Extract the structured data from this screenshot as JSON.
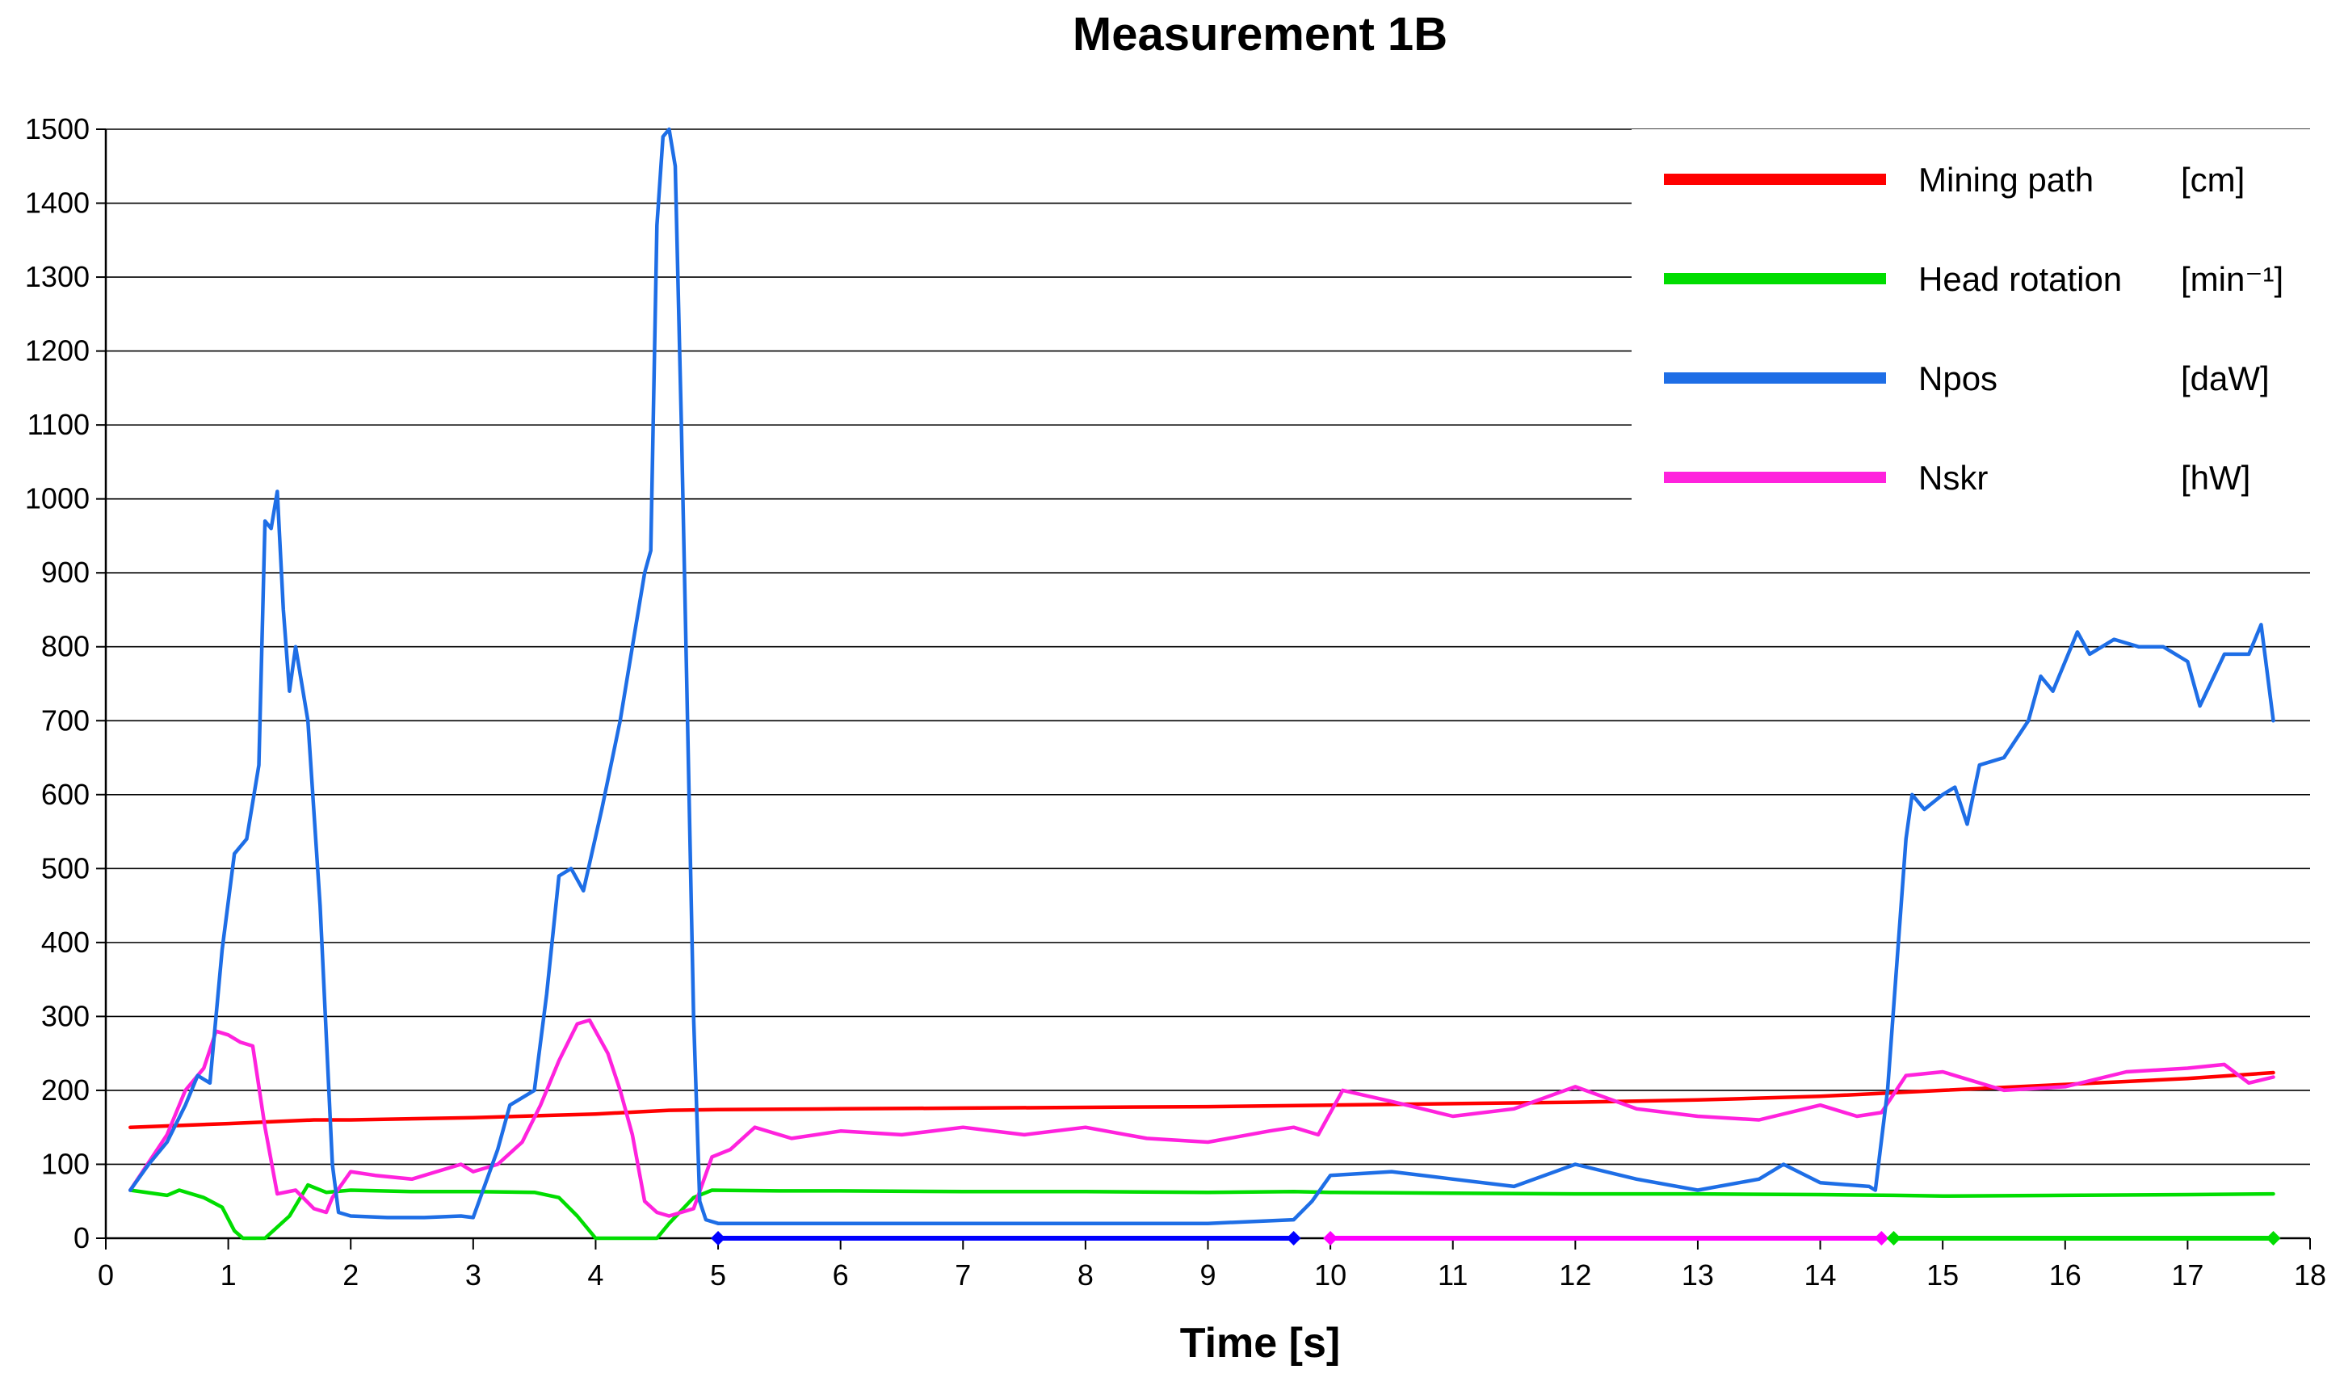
{
  "chart_data": {
    "type": "line",
    "title": "Measurement 1B",
    "xlabel": "Time [s]",
    "ylabel": "",
    "xlim": [
      0,
      18
    ],
    "ylim": [
      0,
      1500
    ],
    "x_ticks": [
      "0",
      "1",
      "2",
      "3",
      "4",
      "5",
      "6",
      "7",
      "8",
      "9",
      "10",
      "11",
      "12",
      "13",
      "14",
      "15",
      "16",
      "17",
      "18"
    ],
    "y_ticks": [
      "0",
      "100",
      "200",
      "300",
      "400",
      "500",
      "600",
      "700",
      "800",
      "900",
      "1000",
      "1100",
      "1200",
      "1300",
      "1400",
      "1500"
    ],
    "grid": "horizontal",
    "legend_position": "top-right",
    "series": [
      {
        "name": "Mining path",
        "unit": "[cm]",
        "color": "#ff0000",
        "points": [
          [
            0.2,
            150
          ],
          [
            1,
            155
          ],
          [
            1.7,
            160
          ],
          [
            2,
            160
          ],
          [
            3,
            163
          ],
          [
            4,
            168
          ],
          [
            4.6,
            173
          ],
          [
            5,
            174
          ],
          [
            6,
            175
          ],
          [
            7,
            176
          ],
          [
            8,
            177
          ],
          [
            9,
            178
          ],
          [
            10,
            180
          ],
          [
            11,
            182
          ],
          [
            12,
            184
          ],
          [
            13,
            187
          ],
          [
            14,
            192
          ],
          [
            15,
            200
          ],
          [
            16,
            208
          ],
          [
            17,
            216
          ],
          [
            17.7,
            224
          ]
        ]
      },
      {
        "name": "Head rotation",
        "unit": "[min⁻¹]",
        "color": "#00dd00",
        "points": [
          [
            0.2,
            65
          ],
          [
            0.5,
            58
          ],
          [
            0.6,
            65
          ],
          [
            0.8,
            55
          ],
          [
            0.95,
            42
          ],
          [
            1.05,
            10
          ],
          [
            1.12,
            0
          ],
          [
            1.3,
            0
          ],
          [
            1.5,
            30
          ],
          [
            1.65,
            72
          ],
          [
            1.8,
            62
          ],
          [
            2,
            65
          ],
          [
            2.5,
            63
          ],
          [
            3,
            63
          ],
          [
            3.5,
            62
          ],
          [
            3.7,
            55
          ],
          [
            3.85,
            30
          ],
          [
            4.0,
            0
          ],
          [
            4.5,
            0
          ],
          [
            4.6,
            20
          ],
          [
            4.8,
            55
          ],
          [
            4.95,
            65
          ],
          [
            5.5,
            64
          ],
          [
            6,
            64
          ],
          [
            7,
            63
          ],
          [
            8,
            63
          ],
          [
            9,
            62
          ],
          [
            9.7,
            63
          ],
          [
            10,
            62
          ],
          [
            11,
            61
          ],
          [
            12,
            60
          ],
          [
            13,
            60
          ],
          [
            14,
            59
          ],
          [
            14.6,
            58
          ],
          [
            15,
            57
          ],
          [
            16,
            58
          ],
          [
            17,
            59
          ],
          [
            17.7,
            60
          ]
        ]
      },
      {
        "name": "Npos",
        "unit": "[daW]",
        "color": "#1e6ee6",
        "points": [
          [
            0.2,
            65
          ],
          [
            0.35,
            100
          ],
          [
            0.5,
            130
          ],
          [
            0.65,
            180
          ],
          [
            0.75,
            220
          ],
          [
            0.85,
            210
          ],
          [
            0.95,
            390
          ],
          [
            1.05,
            520
          ],
          [
            1.15,
            540
          ],
          [
            1.25,
            640
          ],
          [
            1.3,
            970
          ],
          [
            1.35,
            960
          ],
          [
            1.4,
            1010
          ],
          [
            1.45,
            850
          ],
          [
            1.5,
            740
          ],
          [
            1.55,
            800
          ],
          [
            1.65,
            700
          ],
          [
            1.75,
            450
          ],
          [
            1.85,
            100
          ],
          [
            1.9,
            35
          ],
          [
            2.0,
            30
          ],
          [
            2.3,
            28
          ],
          [
            2.6,
            28
          ],
          [
            2.9,
            30
          ],
          [
            3.0,
            28
          ],
          [
            3.2,
            120
          ],
          [
            3.3,
            180
          ],
          [
            3.5,
            200
          ],
          [
            3.6,
            330
          ],
          [
            3.7,
            490
          ],
          [
            3.8,
            500
          ],
          [
            3.9,
            470
          ],
          [
            4.05,
            580
          ],
          [
            4.2,
            700
          ],
          [
            4.3,
            800
          ],
          [
            4.4,
            900
          ],
          [
            4.45,
            930
          ],
          [
            4.5,
            1370
          ],
          [
            4.55,
            1490
          ],
          [
            4.6,
            1500
          ],
          [
            4.65,
            1450
          ],
          [
            4.7,
            1100
          ],
          [
            4.75,
            700
          ],
          [
            4.8,
            300
          ],
          [
            4.85,
            50
          ],
          [
            4.9,
            25
          ],
          [
            5,
            20
          ],
          [
            6,
            20
          ],
          [
            7,
            20
          ],
          [
            8,
            20
          ],
          [
            9,
            20
          ],
          [
            9.7,
            25
          ],
          [
            9.85,
            50
          ],
          [
            10.0,
            85
          ],
          [
            10.5,
            90
          ],
          [
            11,
            80
          ],
          [
            11.5,
            70
          ],
          [
            12,
            100
          ],
          [
            12.5,
            80
          ],
          [
            13,
            65
          ],
          [
            13.5,
            80
          ],
          [
            13.7,
            100
          ],
          [
            14,
            75
          ],
          [
            14.4,
            70
          ],
          [
            14.45,
            65
          ],
          [
            14.55,
            200
          ],
          [
            14.7,
            540
          ],
          [
            14.75,
            600
          ],
          [
            14.85,
            580
          ],
          [
            15,
            600
          ],
          [
            15.1,
            610
          ],
          [
            15.2,
            560
          ],
          [
            15.3,
            640
          ],
          [
            15.5,
            650
          ],
          [
            15.7,
            700
          ],
          [
            15.8,
            760
          ],
          [
            15.9,
            740
          ],
          [
            16,
            780
          ],
          [
            16.1,
            820
          ],
          [
            16.2,
            790
          ],
          [
            16.4,
            810
          ],
          [
            16.6,
            800
          ],
          [
            16.8,
            800
          ],
          [
            17,
            780
          ],
          [
            17.1,
            720
          ],
          [
            17.3,
            790
          ],
          [
            17.5,
            790
          ],
          [
            17.6,
            830
          ],
          [
            17.7,
            700
          ]
        ]
      },
      {
        "name": "Nskr",
        "unit": "[hW]",
        "color": "#ff22dd",
        "points": [
          [
            0.2,
            65
          ],
          [
            0.5,
            140
          ],
          [
            0.65,
            200
          ],
          [
            0.8,
            230
          ],
          [
            0.9,
            280
          ],
          [
            1.0,
            275
          ],
          [
            1.1,
            265
          ],
          [
            1.2,
            260
          ],
          [
            1.3,
            150
          ],
          [
            1.4,
            60
          ],
          [
            1.55,
            65
          ],
          [
            1.7,
            40
          ],
          [
            1.8,
            35
          ],
          [
            1.85,
            55
          ],
          [
            2,
            90
          ],
          [
            2.2,
            85
          ],
          [
            2.5,
            80
          ],
          [
            2.7,
            90
          ],
          [
            2.9,
            100
          ],
          [
            3.0,
            90
          ],
          [
            3.2,
            100
          ],
          [
            3.4,
            130
          ],
          [
            3.55,
            180
          ],
          [
            3.7,
            240
          ],
          [
            3.85,
            290
          ],
          [
            3.95,
            295
          ],
          [
            4.1,
            250
          ],
          [
            4.2,
            200
          ],
          [
            4.3,
            140
          ],
          [
            4.4,
            50
          ],
          [
            4.5,
            35
          ],
          [
            4.6,
            30
          ],
          [
            4.8,
            40
          ],
          [
            4.95,
            110
          ],
          [
            5.1,
            120
          ],
          [
            5.3,
            150
          ],
          [
            5.6,
            135
          ],
          [
            6,
            145
          ],
          [
            6.5,
            140
          ],
          [
            7,
            150
          ],
          [
            7.5,
            140
          ],
          [
            8,
            150
          ],
          [
            8.5,
            135
          ],
          [
            9,
            130
          ],
          [
            9.5,
            145
          ],
          [
            9.7,
            150
          ],
          [
            9.9,
            140
          ],
          [
            10.1,
            200
          ],
          [
            10.5,
            185
          ],
          [
            11,
            165
          ],
          [
            11.5,
            175
          ],
          [
            12,
            205
          ],
          [
            12.5,
            175
          ],
          [
            13,
            165
          ],
          [
            13.5,
            160
          ],
          [
            14,
            180
          ],
          [
            14.3,
            165
          ],
          [
            14.5,
            170
          ],
          [
            14.7,
            220
          ],
          [
            15,
            225
          ],
          [
            15.5,
            200
          ],
          [
            16,
            205
          ],
          [
            16.5,
            225
          ],
          [
            17,
            230
          ],
          [
            17.3,
            235
          ],
          [
            17.5,
            210
          ],
          [
            17.7,
            218
          ]
        ]
      }
    ],
    "interval_markers": [
      {
        "color": "#0000ff",
        "x_start": 5,
        "x_end": 9.7
      },
      {
        "color": "#ff00ff",
        "x_start": 10,
        "x_end": 14.5
      },
      {
        "color": "#00dd00",
        "x_start": 14.6,
        "x_end": 17.7
      }
    ]
  }
}
